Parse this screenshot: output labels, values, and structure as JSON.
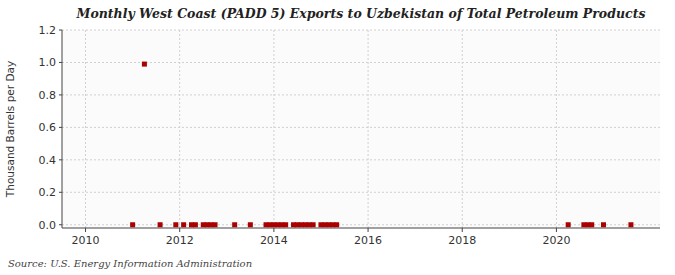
{
  "chart_data": {
    "type": "scatter",
    "title": "Monthly West Coast (PADD 5) Exports to Uzbekistan of Total Petroleum Products",
    "y_label": "Thousand Barrels per Day",
    "annotations": [
      "Source: U.S. Energy Information Administration"
    ],
    "x": [
      2011.25,
      2011.0,
      2011.583,
      2011.917,
      2012.083,
      2012.25,
      2012.333,
      2012.5,
      2012.583,
      2012.667,
      2012.75,
      2013.167,
      2013.5,
      2013.833,
      2013.917,
      2014.0,
      2014.083,
      2014.167,
      2014.25,
      2014.417,
      2014.5,
      2014.583,
      2014.667,
      2014.75,
      2014.833,
      2015.0,
      2015.083,
      2015.167,
      2015.25,
      2015.333,
      2020.25,
      2020.583,
      2020.667,
      2020.75,
      2021.0,
      2021.583
    ],
    "values": [
      0.99,
      0.0,
      0.0,
      0.0,
      0.0,
      0.0,
      0.0,
      0.0,
      0.0,
      0.0,
      0.0,
      0.0,
      0.0,
      0.0,
      0.0,
      0.0,
      0.0,
      0.0,
      0.0,
      0.0,
      0.0,
      0.0,
      0.0,
      0.0,
      0.0,
      0.0,
      0.0,
      0.0,
      0.0,
      0.0,
      0.0,
      0.0,
      0.0,
      0.0,
      0.0,
      0.0
    ],
    "color": "#aa0000",
    "marker": "square",
    "xlim": [
      2009.5,
      2022.2
    ],
    "ylim": [
      -0.02,
      1.2
    ],
    "xticks": [
      2010,
      2012,
      2014,
      2016,
      2018,
      2020
    ],
    "yticks": [
      {
        "value": 0.0,
        "label": "0.0"
      },
      0.2,
      0.4,
      0.6,
      0.8,
      {
        "value": 1.0,
        "label": "1.0"
      },
      1.2
    ],
    "grid": true
  }
}
